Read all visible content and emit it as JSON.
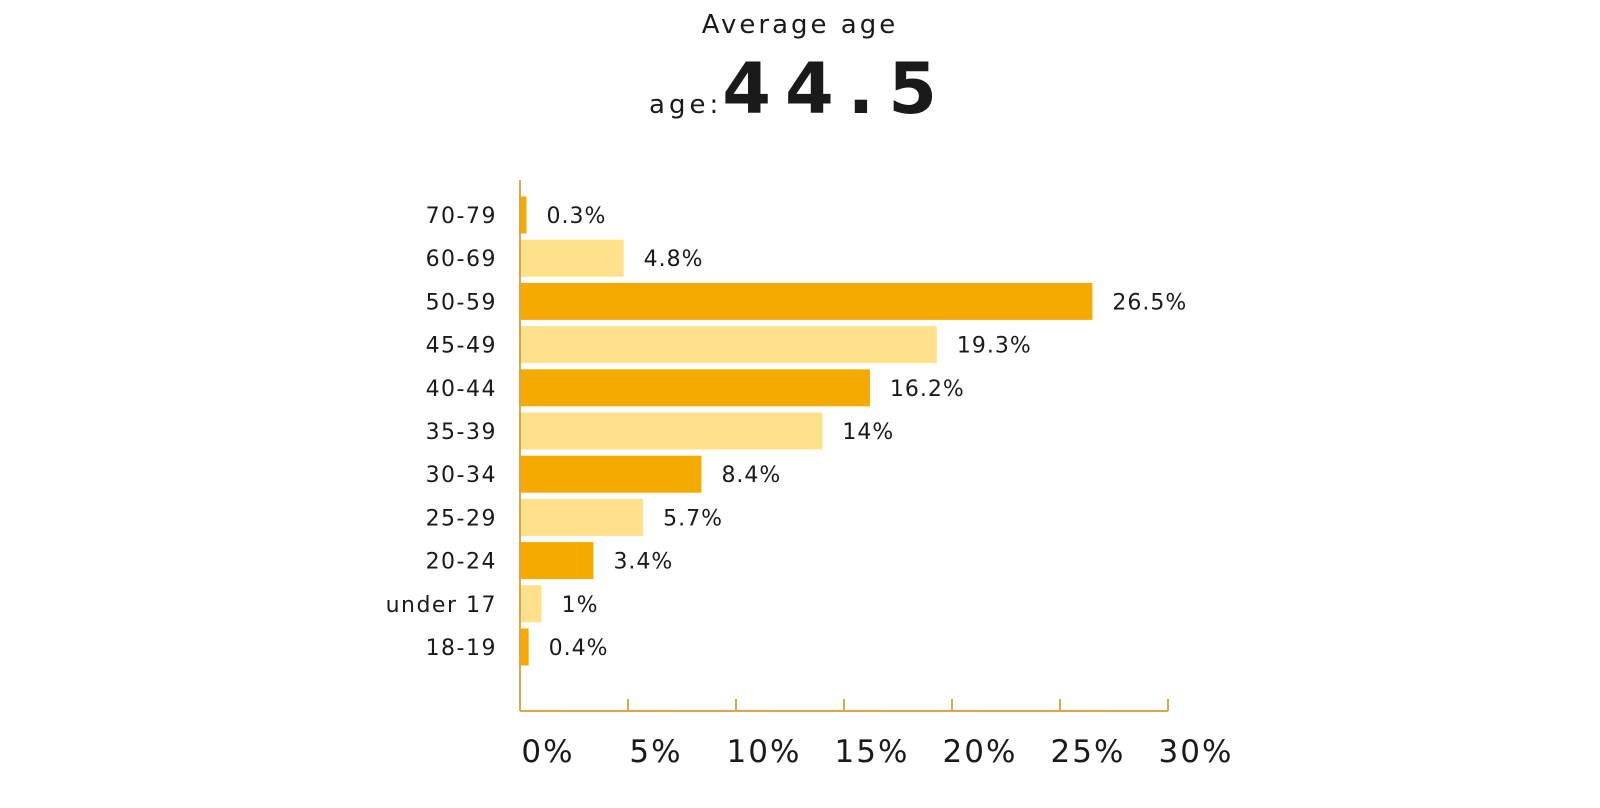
{
  "header": {
    "title": "Average age",
    "average_prefix": "age:",
    "average_value": "44.5"
  },
  "chart_data": {
    "type": "bar",
    "orientation": "horizontal",
    "categories": [
      "70-79",
      "60-69",
      "50-59",
      "45-49",
      "40-44",
      "35-39",
      "30-34",
      "25-29",
      "20-24",
      "under 17",
      "18-19"
    ],
    "values": [
      0.3,
      4.8,
      26.5,
      19.3,
      16.2,
      14,
      8.4,
      5.7,
      3.4,
      1,
      0.4
    ],
    "value_labels": [
      "0.3%",
      "4.8%",
      "26.5%",
      "19.3%",
      "16.2%",
      "14%",
      "8.4%",
      "5.7%",
      "3.4%",
      "1%",
      "0.4%"
    ],
    "xlim": [
      0,
      30
    ],
    "x_ticks": [
      0,
      5,
      10,
      15,
      20,
      25,
      30
    ],
    "x_tick_labels": [
      "0%",
      "5%",
      "10%",
      "15%",
      "20%",
      "25%",
      "30%"
    ],
    "colors": {
      "dark": "#f5aa00",
      "light": "#ffe18c",
      "axis": "#e0a44a"
    },
    "grid": false,
    "legend": "none"
  }
}
